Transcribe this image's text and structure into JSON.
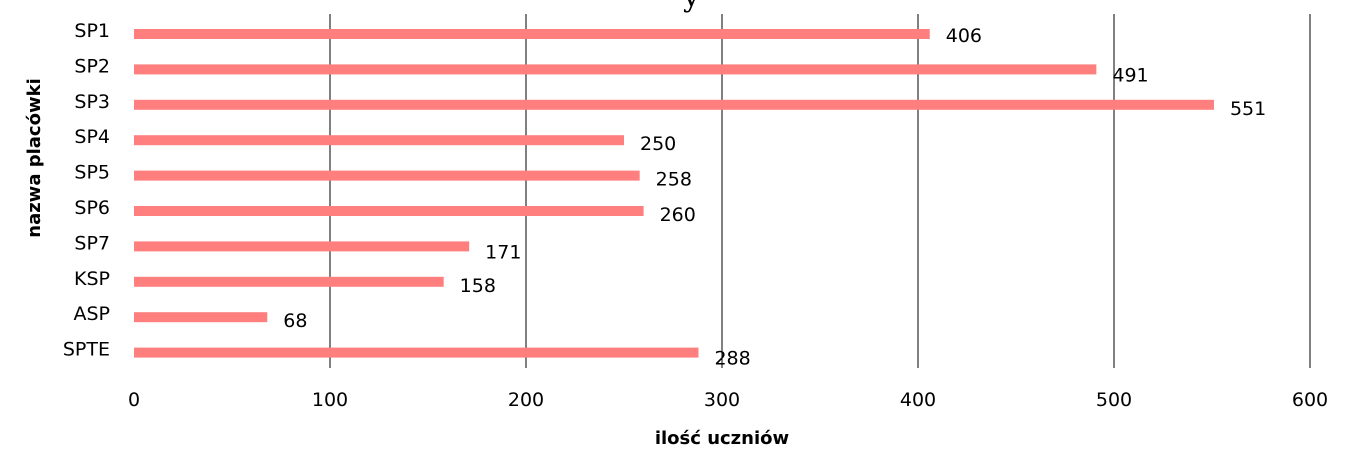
{
  "chart_data": {
    "type": "bar",
    "orientation": "horizontal",
    "categories": [
      "SP1",
      "SP2",
      "SP3",
      "SP4",
      "SP5",
      "SP6",
      "SP7",
      "KSP",
      "ASP",
      "SPTE"
    ],
    "values": [
      406,
      491,
      551,
      250,
      258,
      260,
      171,
      158,
      68,
      288
    ],
    "data_labels": [
      "406",
      "491",
      "551",
      "250",
      "258",
      "260",
      "171",
      "158",
      "68",
      "288"
    ],
    "title": "",
    "title_fragment": "y",
    "xlabel": "ilość uczniów",
    "ylabel": "nazwa placówki",
    "xlim": [
      0,
      600
    ],
    "x_ticks": [
      0,
      100,
      200,
      300,
      400,
      500,
      600
    ],
    "x_tick_labels": [
      "0",
      "100",
      "200",
      "300",
      "400",
      "500",
      "600"
    ],
    "grid": "vertical",
    "legend": "none",
    "colors": {
      "bar": "#ff7f7f",
      "grid": "#000000",
      "text": "#000000",
      "background": "#ffffff"
    }
  }
}
